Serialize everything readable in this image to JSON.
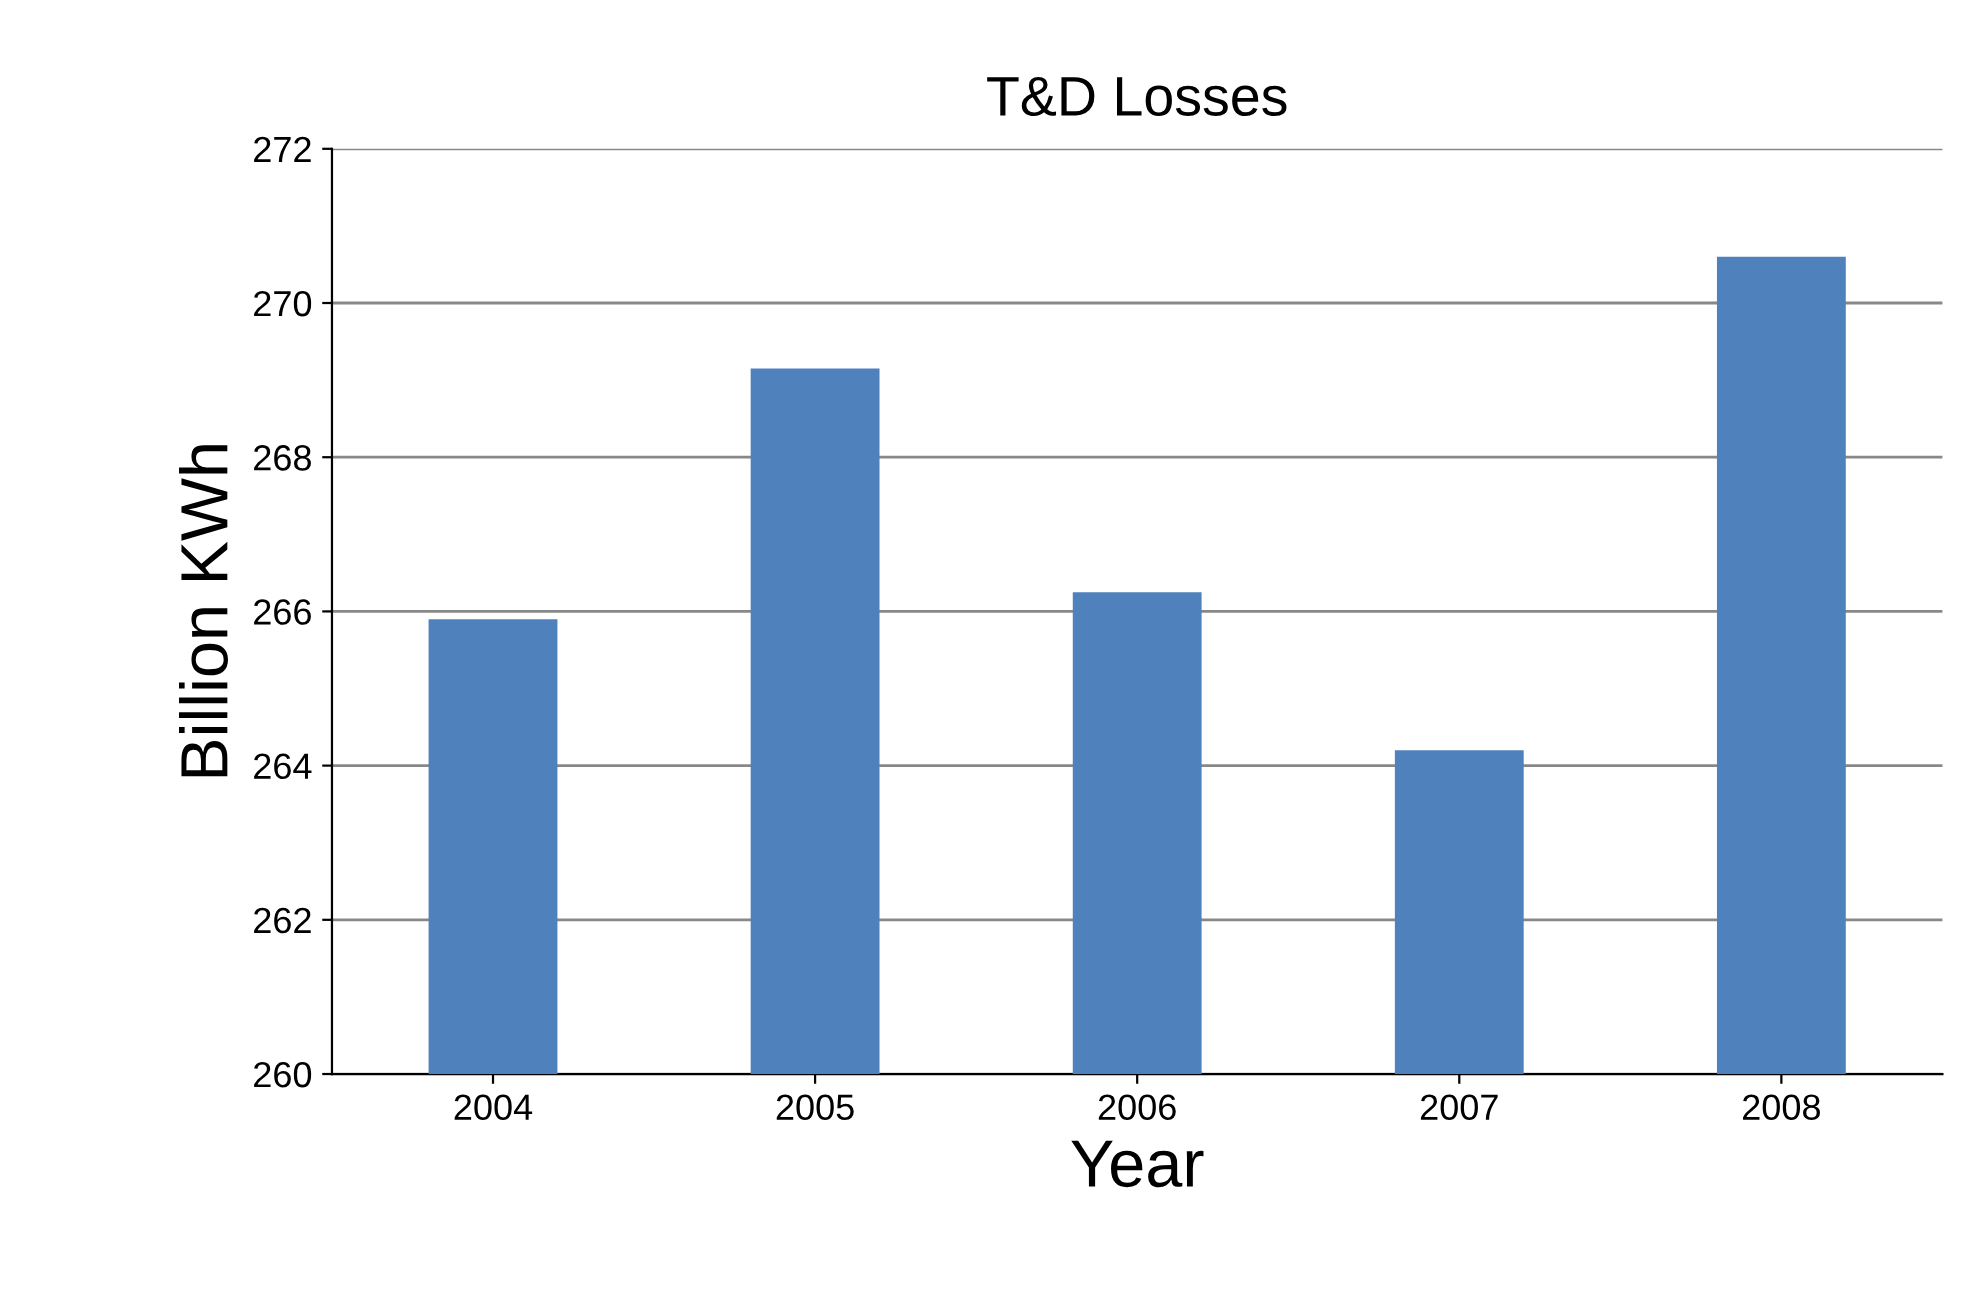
{
  "chart_data": {
    "type": "bar",
    "title": "T&D Losses",
    "xlabel": "Year",
    "ylabel": "Billion KWh",
    "categories": [
      "2004",
      "2005",
      "2006",
      "2007",
      "2008"
    ],
    "values": [
      265.9,
      269.15,
      266.25,
      264.2,
      270.6
    ],
    "color": "#4f81bd",
    "ylim": [
      260,
      272
    ],
    "yticks": [
      260,
      262,
      264,
      266,
      268,
      270,
      272
    ],
    "grid": "y",
    "legend": false
  }
}
